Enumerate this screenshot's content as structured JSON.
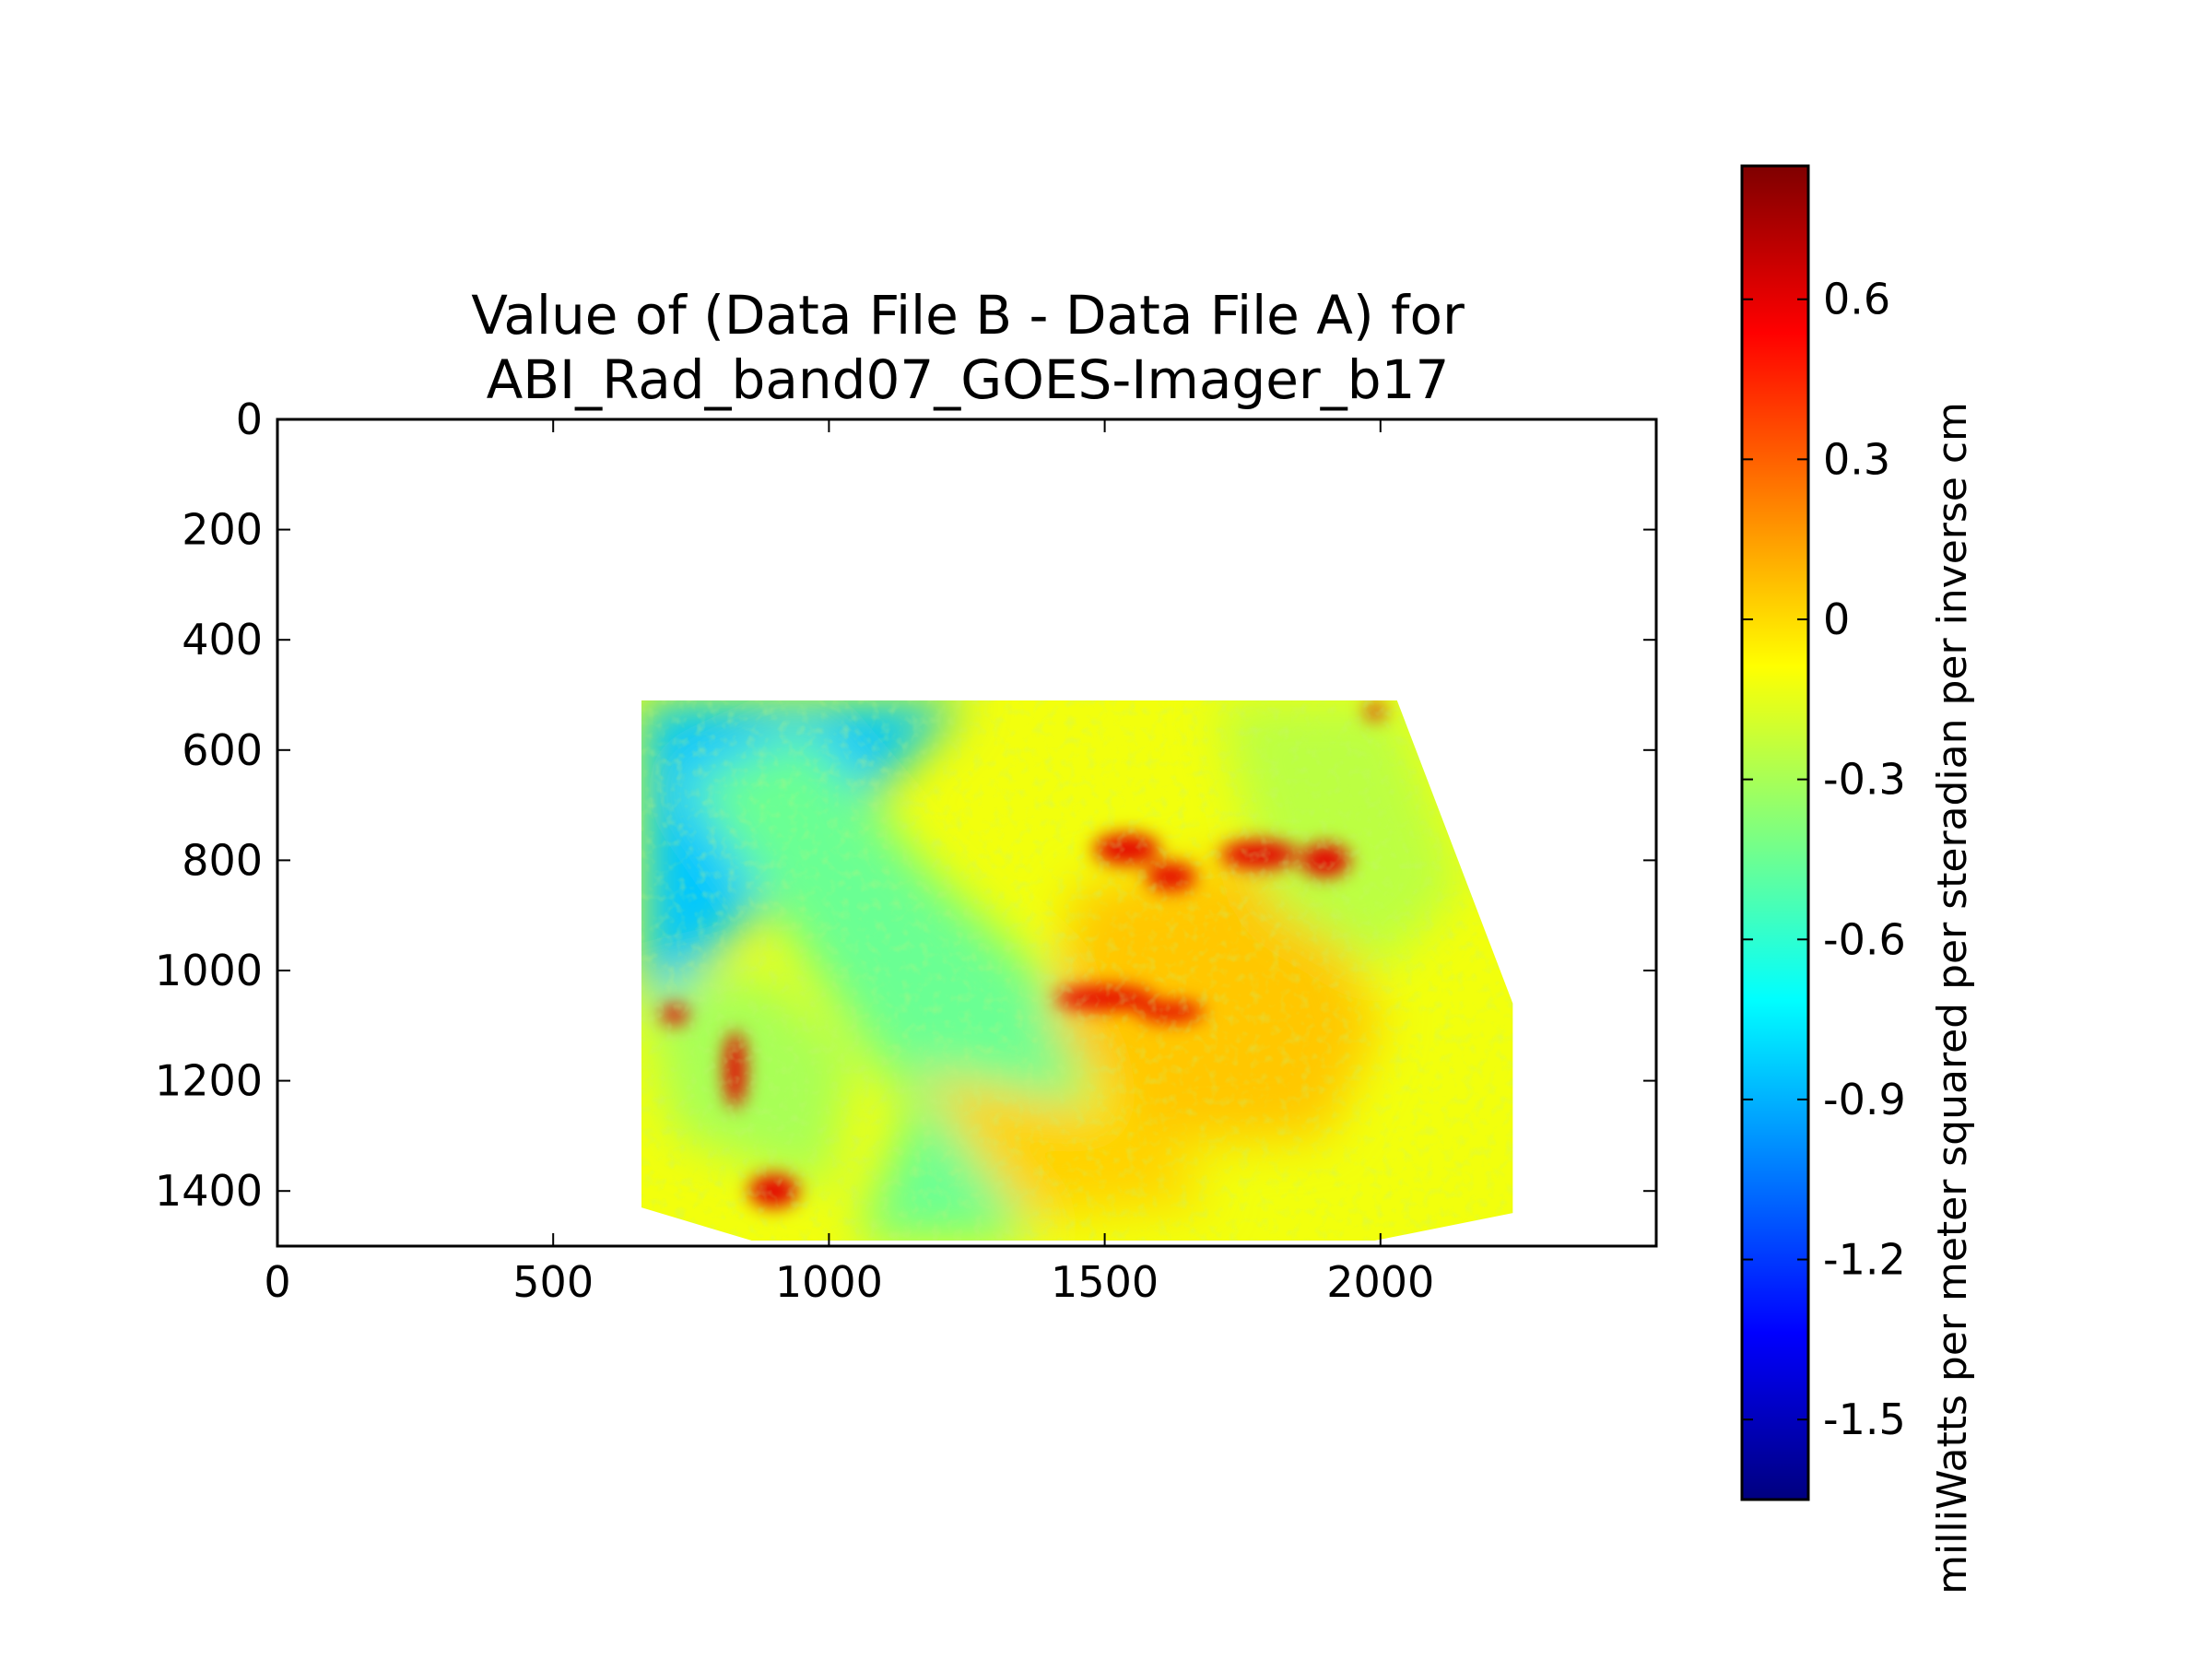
{
  "chart_data": {
    "type": "heatmap",
    "title_lines": [
      "Value of (Data File B - Data File A) for",
      "ABI_Rad_band07_GOES-Imager_b17"
    ],
    "xlabel": "",
    "ylabel": "",
    "xlim": [
      0,
      2500
    ],
    "ylim": [
      1500,
      0
    ],
    "x_ticks": [
      0,
      500,
      1000,
      1500,
      2000
    ],
    "y_ticks": [
      0,
      200,
      400,
      600,
      800,
      1000,
      1200,
      1400
    ],
    "grid": false,
    "data_extent": {
      "x_min": 660,
      "x_max": 2240,
      "y_top": 510,
      "y_bottom": 1490,
      "outline": [
        [
          660,
          510
        ],
        [
          2030,
          510
        ],
        [
          2240,
          1060
        ],
        [
          2240,
          1440
        ],
        [
          1990,
          1490
        ],
        [
          860,
          1490
        ],
        [
          660,
          1430
        ]
      ]
    },
    "colorbar": {
      "label": "milliWatts per meter squared per steradian per inverse cm",
      "colormap": "jet",
      "min": -1.65,
      "max": 0.85,
      "ticks": [
        "0.6",
        "0.3",
        "0",
        "-0.3",
        "-0.6",
        "-0.9",
        "-1.2",
        "-1.5"
      ],
      "colors": [
        "#00007f",
        "#0000ff",
        "#007fff",
        "#00ffff",
        "#7fff7f",
        "#ffff00",
        "#ff7f00",
        "#ff0000",
        "#7f0000"
      ]
    },
    "features": [
      {
        "kind": "diagonal band",
        "value": -0.45
      },
      {
        "kind": "eastern band",
        "value": -0.25
      },
      {
        "kind": "west strip",
        "value": -0.85
      },
      {
        "kind": "central bright region",
        "value": 0.05
      },
      {
        "kind": "convective cluster",
        "value": 0.6
      }
    ]
  }
}
